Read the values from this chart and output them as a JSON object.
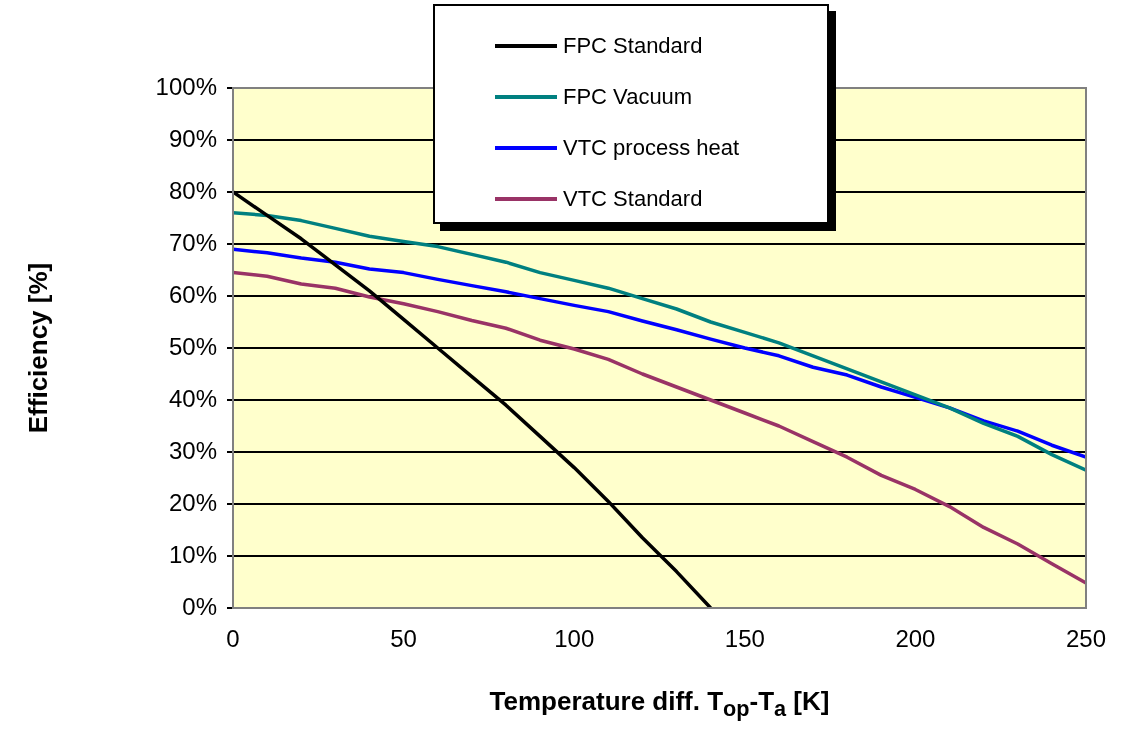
{
  "chart_data": {
    "type": "line",
    "xlabel": "Temperature diff. T$_{op}$-T$_{a}$ [K]",
    "ylabel": "Efficiency [%]",
    "x": [
      0,
      10,
      20,
      30,
      40,
      50,
      60,
      70,
      80,
      90,
      100,
      110,
      120,
      130,
      140,
      150,
      160,
      170,
      180,
      190,
      200,
      210,
      220,
      230,
      240,
      250
    ],
    "series": [
      {
        "name": "FPC Standard",
        "color": "#000000",
        "x": [
          0,
          10,
          20,
          30,
          40,
          50,
          60,
          70,
          80,
          90,
          100,
          110,
          120,
          130,
          140
        ],
        "values": [
          80,
          75.5,
          71,
          66,
          61,
          55.5,
          50,
          44.5,
          39,
          33,
          27,
          20.5,
          13.5,
          7,
          0
        ]
      },
      {
        "name": "FPC Vacuum",
        "color": "#008080",
        "values": [
          76,
          75.5,
          74.5,
          73,
          71.5,
          70.5,
          69.5,
          68,
          66.5,
          64.5,
          63,
          61.5,
          59.5,
          57.5,
          55,
          53,
          51,
          48.5,
          46,
          43.5,
          41,
          38.5,
          35.5,
          33,
          29.5,
          26.5
        ]
      },
      {
        "name": "VTC process heat",
        "color": "#0000ff",
        "values": [
          69,
          68.3,
          67.3,
          66.5,
          65.2,
          64.5,
          63.2,
          62,
          60.8,
          59.5,
          58.2,
          57,
          55.2,
          53.5,
          51.7,
          50,
          48.5,
          46.3,
          44.8,
          42.5,
          40.5,
          38.5,
          36,
          34,
          31.3,
          29
        ]
      },
      {
        "name": "VTC Standard",
        "color": "#993366",
        "values": [
          64.5,
          63.8,
          62.3,
          61.5,
          59.8,
          58.5,
          57,
          55.3,
          53.8,
          51.5,
          49.8,
          47.8,
          45,
          42.5,
          40,
          37.5,
          35,
          32,
          29,
          25.5,
          22.8,
          19.5,
          15.5,
          12.3,
          8.5,
          4.8
        ]
      }
    ],
    "xlim": [
      0,
      250
    ],
    "xticks": [
      0,
      50,
      100,
      150,
      200,
      250
    ],
    "ylim": [
      0,
      100
    ],
    "yticks": [
      {
        "value": 0,
        "label": "0%"
      },
      {
        "value": 10,
        "label": "10%"
      },
      {
        "value": 20,
        "label": "20%"
      },
      {
        "value": 30,
        "label": "30%"
      },
      {
        "value": 40,
        "label": "40%"
      },
      {
        "value": 50,
        "label": "50%"
      },
      {
        "value": 60,
        "label": "60%"
      },
      {
        "value": 70,
        "label": "70%"
      },
      {
        "value": 80,
        "label": "80%"
      },
      {
        "value": 90,
        "label": "90%"
      },
      {
        "value": 100,
        "label": "100%"
      }
    ],
    "grid": "y",
    "legend": "top",
    "marker": "none",
    "line_style": "solid"
  }
}
